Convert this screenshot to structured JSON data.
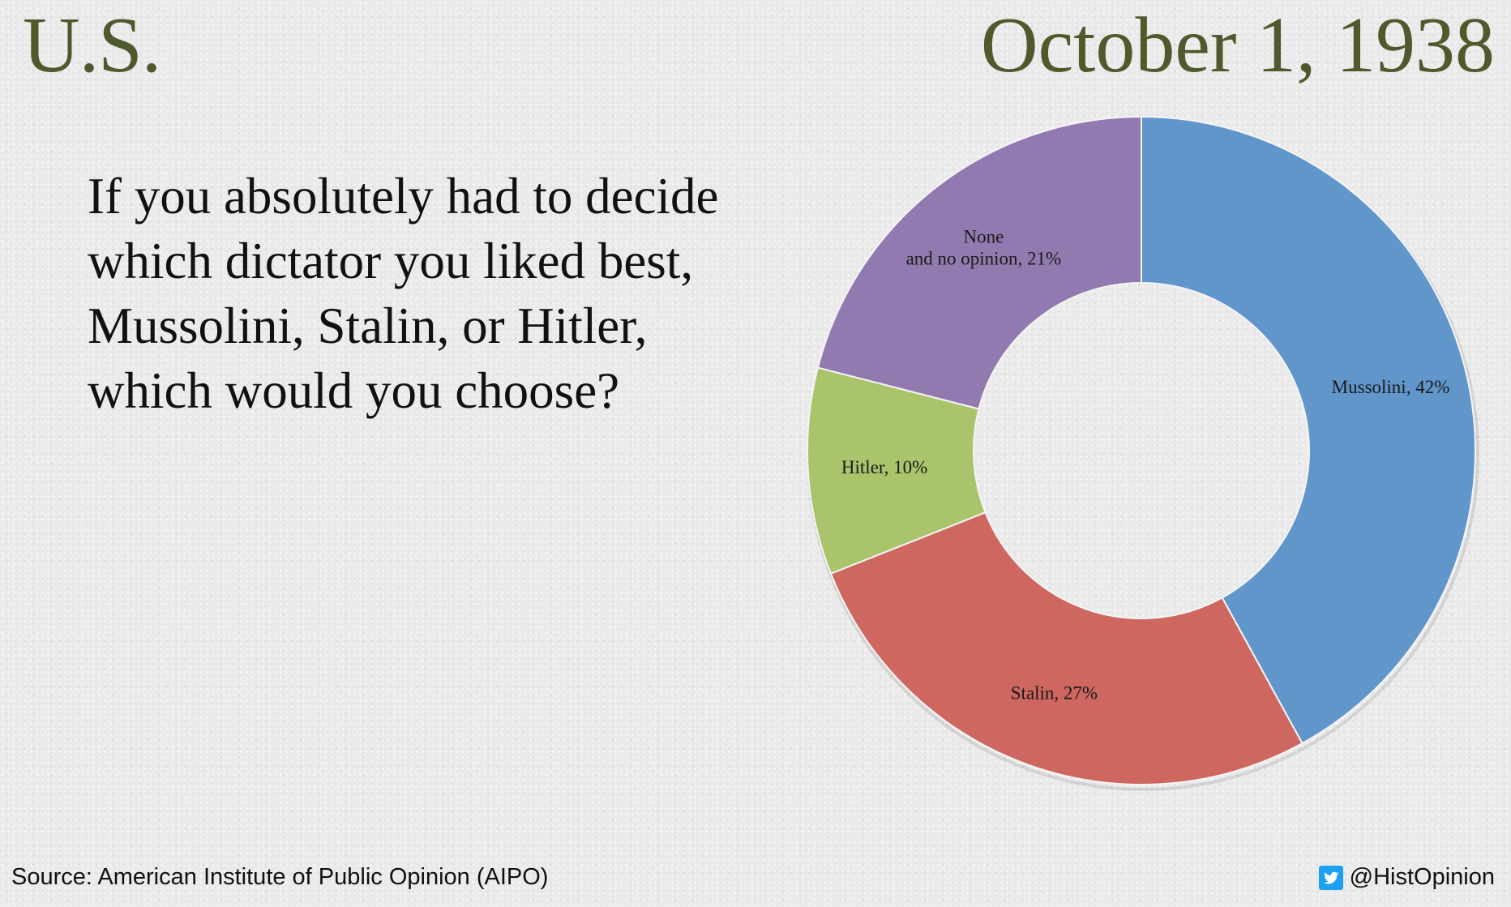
{
  "header": {
    "region": "U.S.",
    "date": "October 1, 1938"
  },
  "question": {
    "lines": [
      "If you absolutely had to decide",
      "which dictator you liked best,",
      "Mussolini, Stalin, or Hitler,",
      "which would you choose?"
    ]
  },
  "chart_data": {
    "type": "pie",
    "variant": "donut",
    "title": "",
    "slices": [
      {
        "name": "Mussolini",
        "value": 42,
        "label": [
          "Mussolini, 42%"
        ],
        "color": "#6196cb"
      },
      {
        "name": "Stalin",
        "value": 27,
        "label": [
          "Stalin, 27%"
        ],
        "color": "#cd6760"
      },
      {
        "name": "Hitler",
        "value": 10,
        "label": [
          "Hitler, 10%"
        ],
        "color": "#a9c46b"
      },
      {
        "name": "None and no opinion",
        "value": 21,
        "label": [
          "None",
          "and no opinion, 21%"
        ],
        "color": "#927ab0"
      }
    ],
    "unit": "%",
    "start": "12 o'clock",
    "direction": "clockwise",
    "legend": "none (labels on slices)"
  },
  "footer": {
    "source": "Source: American Institute of Public Opinion (AIPO)",
    "handle": "@HistOpinion",
    "handle_icon": "twitter-bird-icon",
    "handle_icon_color": "#1da1f2"
  }
}
